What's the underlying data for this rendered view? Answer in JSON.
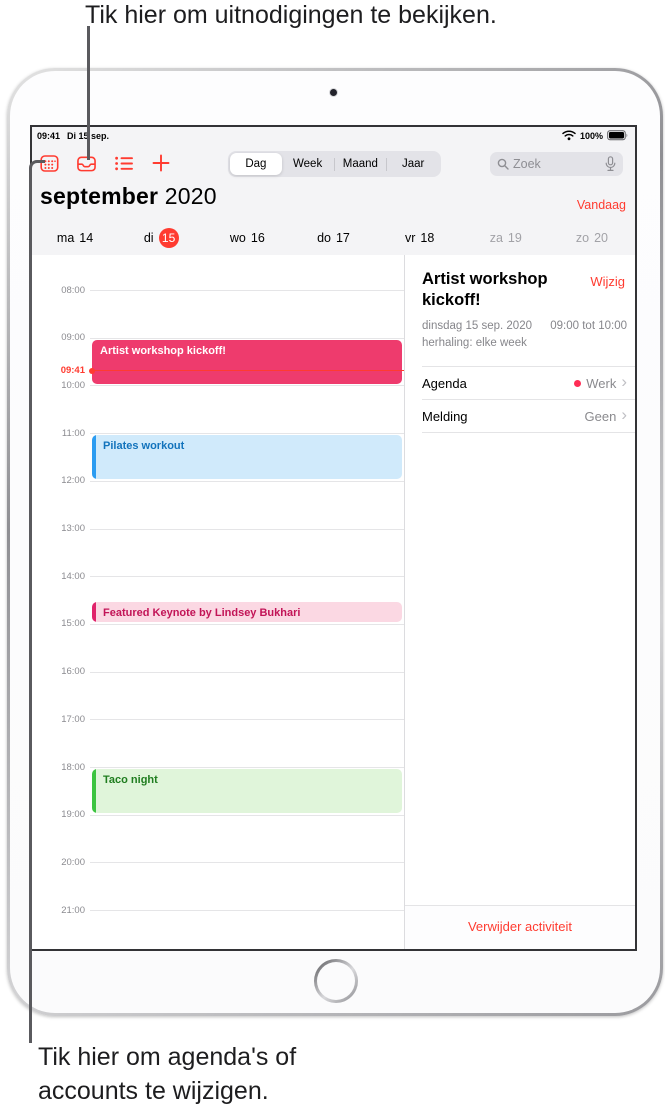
{
  "callouts": {
    "top": "Tik hier om uitnodigingen te bekijken.",
    "bottom": "Tik hier om agenda's of\naccounts te wijzigen."
  },
  "status_bar": {
    "time": "09:41",
    "date": "Di 15 sep.",
    "battery": "100%"
  },
  "toolbar": {
    "icons": [
      "calendar-icon",
      "inbox-icon",
      "list-icon",
      "add-icon"
    ],
    "view_tabs": [
      {
        "label": "Dag",
        "selected": true
      },
      {
        "label": "Week",
        "selected": false
      },
      {
        "label": "Maand",
        "selected": false
      },
      {
        "label": "Jaar",
        "selected": false
      }
    ],
    "search_placeholder": "Zoek",
    "search_icons": [
      "search-icon",
      "mic-icon"
    ]
  },
  "header": {
    "month": "september",
    "year": "2020",
    "today_label": "Vandaag"
  },
  "week_days": [
    {
      "label": "ma",
      "num": "14",
      "today": false,
      "weekend": false
    },
    {
      "label": "di",
      "num": "15",
      "today": true,
      "weekend": false
    },
    {
      "label": "wo",
      "num": "16",
      "today": false,
      "weekend": false
    },
    {
      "label": "do",
      "num": "17",
      "today": false,
      "weekend": false
    },
    {
      "label": "vr",
      "num": "18",
      "today": false,
      "weekend": false
    },
    {
      "label": "za",
      "num": "19",
      "today": false,
      "weekend": true
    },
    {
      "label": "zo",
      "num": "20",
      "today": false,
      "weekend": true
    }
  ],
  "timeline": {
    "hours": [
      "08:00",
      "09:00",
      "10:00",
      "11:00",
      "12:00",
      "13:00",
      "14:00",
      "15:00",
      "16:00",
      "17:00",
      "18:00",
      "19:00",
      "20:00",
      "21:00"
    ],
    "current_time": "09:41",
    "events": [
      {
        "title": "Artist workshop kickoff!",
        "start": "09:00",
        "end": "10:00",
        "bg": "#ee3b6d",
        "bar": null,
        "text": "#ffffff"
      },
      {
        "title": "Pilates workout",
        "start": "11:00",
        "end": "12:00",
        "bg": "#d0eafb",
        "bar": "#2b9cf1",
        "text": "#1273bc"
      },
      {
        "title": "Featured Keynote by Lindsey Bukhari",
        "start": "14:30",
        "end": "15:00",
        "bg": "#fbd8e3",
        "bar": "#e0236b",
        "text": "#c21457"
      },
      {
        "title": "Taco night",
        "start": "18:00",
        "end": "19:00",
        "bg": "#e0f5da",
        "bar": "#3cc440",
        "text": "#1f7d1f"
      }
    ]
  },
  "detail_panel": {
    "title": "Artist workshop kickoff!",
    "edit_label": "Wijzig",
    "date_line": "dinsdag 15 sep. 2020",
    "time_line": "09:00 tot 10:00",
    "repeat_line": "herhaling: elke week",
    "rows": [
      {
        "label": "Agenda",
        "value": "Werk",
        "dot": "#ff2d55"
      },
      {
        "label": "Melding",
        "value": "Geen",
        "dot": null
      }
    ],
    "delete_label": "Verwijder activiteit"
  },
  "colors": {
    "accent_red": "#ff3b30",
    "header_bg": "#f4f4f6",
    "selected_event": "#ee3b6d"
  }
}
